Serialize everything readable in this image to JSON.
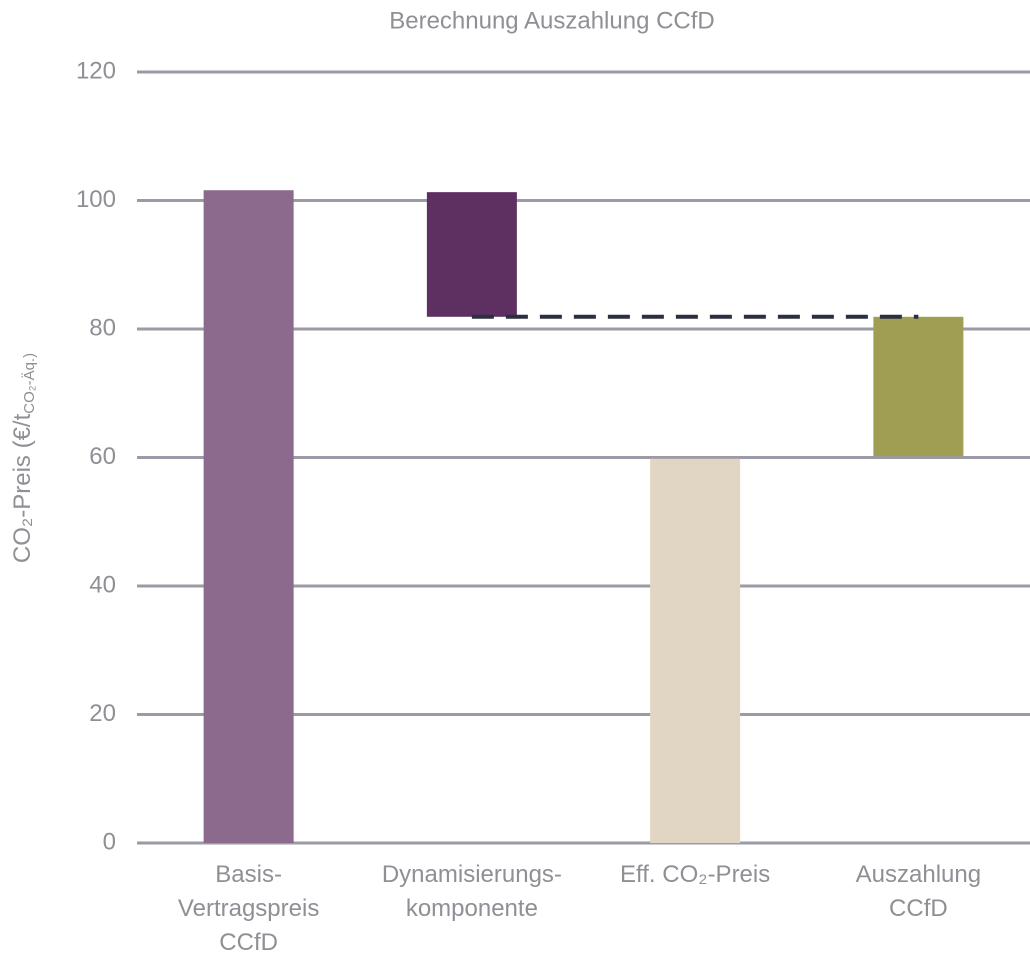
{
  "chart_data": {
    "type": "floating_bar",
    "title": "Berechnung Auszahlung CCfD",
    "ylabel": [
      "CO₂-Preis (€/t",
      "CO₂-Äq.)"
    ],
    "categories": [
      [
        "Basis-",
        "Vertragspreis",
        "CCfD"
      ],
      [
        "Dynamisierungs-",
        "komponente"
      ],
      [
        "Eff. CO₂-Preis"
      ],
      [
        "Auszahlung",
        "CCfD"
      ]
    ],
    "ranges": [
      [
        0,
        101.6
      ],
      [
        81.9,
        101.3
      ],
      [
        0,
        59.8
      ],
      [
        60.2,
        81.9
      ]
    ],
    "colors": [
      "#8b6a8e",
      "#5e3062",
      "#e0d6c3",
      "#a09e53"
    ],
    "dashed_line": {
      "value": 81.9,
      "from": 1,
      "to": 3,
      "color": "#2b2f3f"
    },
    "ylim": [
      0,
      120
    ],
    "yticks": [
      0,
      20,
      40,
      60,
      80,
      100,
      120
    ],
    "grid": true
  }
}
